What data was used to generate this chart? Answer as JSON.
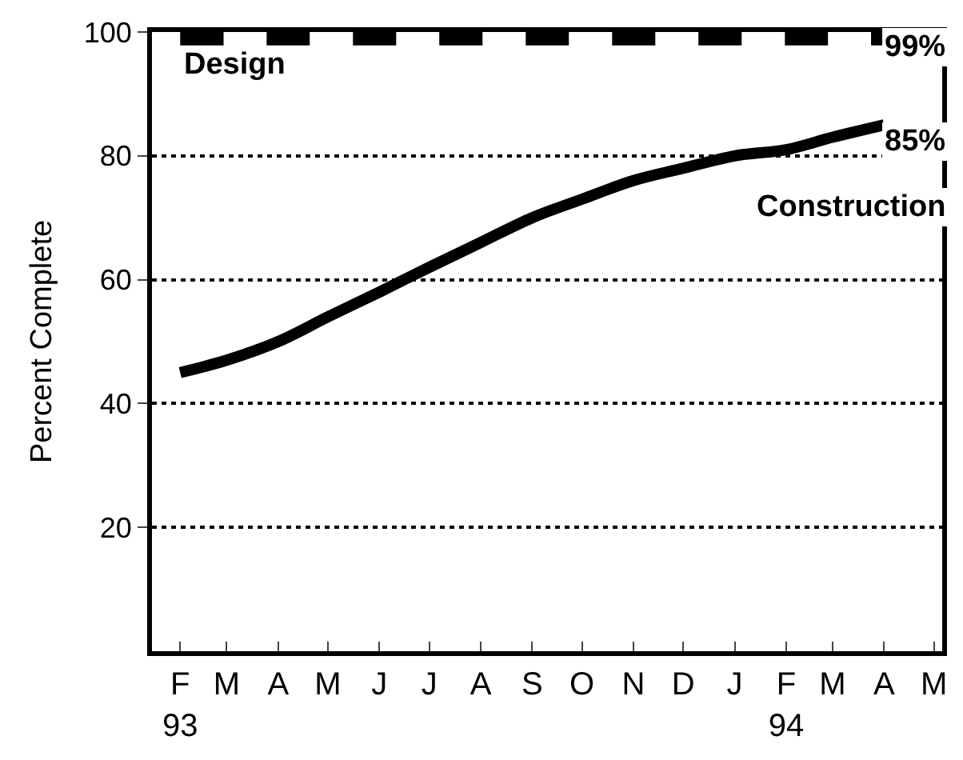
{
  "chart_data": {
    "type": "line",
    "ylabel": "Percent Complete",
    "x": [
      "1993-02",
      "1993-03",
      "1993-04",
      "1993-05",
      "1993-06",
      "1993-07",
      "1993-08",
      "1993-09",
      "1993-10",
      "1993-11",
      "1993-12",
      "1994-01",
      "1994-02",
      "1994-03",
      "1994-04"
    ],
    "series": [
      {
        "name": "Design",
        "color": "#000000",
        "line_style": "dashed",
        "values": [
          99,
          99,
          99,
          99,
          99,
          99,
          99,
          99,
          99,
          99,
          99,
          99,
          99,
          99,
          99
        ]
      },
      {
        "name": "Construction",
        "color": "#000000",
        "line_style": "solid",
        "values": [
          45,
          47,
          50,
          54,
          58,
          62,
          66,
          70,
          73,
          76,
          78,
          80,
          81,
          83,
          85
        ]
      }
    ],
    "annotations": [
      {
        "text": "99%",
        "x": "1994-04",
        "y": 99
      },
      {
        "text": "85%",
        "x": "1994-04",
        "y": 85
      }
    ],
    "xlim": [
      "1993-01-15",
      "1994-05-06"
    ],
    "xticks": [
      {
        "value": "1993-02",
        "label": "F\n93"
      },
      {
        "value": "1993-03",
        "label": "M"
      },
      {
        "value": "1993-04",
        "label": "A"
      },
      {
        "value": "1993-05",
        "label": "M"
      },
      {
        "value": "1993-06",
        "label": "J"
      },
      {
        "value": "1993-07",
        "label": "J"
      },
      {
        "value": "1993-08",
        "label": "A"
      },
      {
        "value": "1993-09",
        "label": "S"
      },
      {
        "value": "1993-10",
        "label": "O"
      },
      {
        "value": "1993-11",
        "label": "N"
      },
      {
        "value": "1993-12",
        "label": "D"
      },
      {
        "value": "1994-01",
        "label": "J"
      },
      {
        "value": "1994-02",
        "label": "F\n94"
      },
      {
        "value": "1994-03",
        "label": "M"
      },
      {
        "value": "1994-04",
        "label": "A"
      },
      {
        "value": "1994-05",
        "label": "M"
      }
    ],
    "ylim": [
      0,
      100
    ],
    "yticks": [
      20,
      40,
      60,
      80,
      100
    ],
    "grid": "y",
    "legend": false,
    "marker": "none"
  }
}
